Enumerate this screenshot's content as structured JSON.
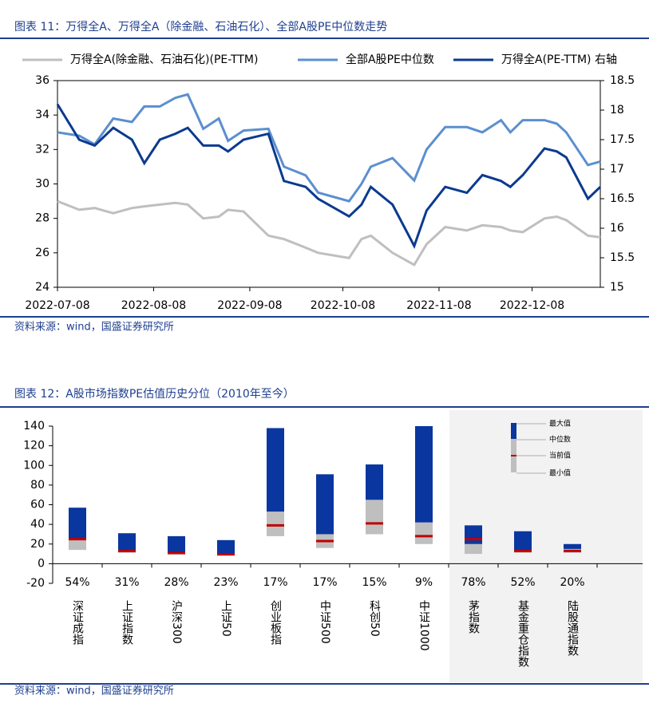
{
  "chart_data": [
    {
      "type": "line",
      "title": "图表 11：万得全A、万得全A（除金融、石油石化）、全部A股PE中位数走势",
      "source": "资料来源：wind，国盛证券研究所",
      "x": [
        "2022-07-08",
        "2022-07-15",
        "2022-07-20",
        "2022-07-26",
        "2022-08-01",
        "2022-08-05",
        "2022-08-10",
        "2022-08-15",
        "2022-08-19",
        "2022-08-24",
        "2022-08-29",
        "2022-09-01",
        "2022-09-06",
        "2022-09-14",
        "2022-09-19",
        "2022-09-26",
        "2022-09-30",
        "2022-10-10",
        "2022-10-14",
        "2022-10-17",
        "2022-10-24",
        "2022-10-31",
        "2022-11-04",
        "2022-11-10",
        "2022-11-17",
        "2022-11-22",
        "2022-11-28",
        "2022-12-01",
        "2022-12-05",
        "2022-12-12",
        "2022-12-16",
        "2022-12-19",
        "2022-12-26",
        "2022-12-30"
      ],
      "xlim": [
        "2022-07-08",
        "2022-12-30"
      ],
      "xticks": [
        "2022-07-08",
        "2022-08-08",
        "2022-09-08",
        "2022-10-08",
        "2022-11-08",
        "2022-12-08"
      ],
      "ylim": [
        24,
        36
      ],
      "yticks": [
        24,
        26,
        28,
        30,
        32,
        34,
        36
      ],
      "y2lim": [
        15,
        18.5
      ],
      "y2ticks": [
        15,
        15.5,
        16,
        16.5,
        17,
        17.5,
        18,
        18.5
      ],
      "series": [
        {
          "name": "万得全A(除金融、石油石化)(PE-TTM)",
          "color": "#bfbfbf",
          "values": [
            29,
            28.5,
            28.6,
            28.3,
            28.6,
            28.7,
            28.8,
            28.9,
            28.8,
            28,
            28.1,
            28.5,
            28.4,
            27,
            26.8,
            26.3,
            26,
            25.7,
            26.8,
            27,
            26,
            25.3,
            26.5,
            27.5,
            27.3,
            27.6,
            27.5,
            27.3,
            27.2,
            28,
            28.1,
            27.9,
            27,
            26.9
          ]
        },
        {
          "name": "全部A股PE中位数",
          "color": "#5b8fd0",
          "values": [
            33,
            32.8,
            32.3,
            33.8,
            33.6,
            34.5,
            34.5,
            35,
            35.2,
            33.2,
            33.8,
            32.5,
            33.1,
            33.2,
            31,
            30.5,
            29.5,
            29,
            30,
            31,
            31.5,
            30.2,
            32,
            33.3,
            33.3,
            33,
            33.7,
            33,
            33.7,
            33.7,
            33.5,
            33,
            31.1,
            31.3
          ]
        },
        {
          "name": "万得全A(PE-TTM) 右轴",
          "color": "#0b3a8f",
          "axis": "y2",
          "values": [
            18.1,
            17.5,
            17.4,
            17.7,
            17.5,
            17.1,
            17.5,
            17.6,
            17.7,
            17.4,
            17.4,
            17.3,
            17.5,
            17.6,
            16.8,
            16.7,
            16.5,
            16.2,
            16.4,
            16.7,
            16.4,
            15.7,
            16.3,
            16.7,
            16.6,
            16.9,
            16.8,
            16.7,
            16.9,
            17.35,
            17.3,
            17.2,
            16.5,
            16.7
          ]
        }
      ]
    },
    {
      "type": "range",
      "title": "图表 12：A股市场指数PE估值历史分位（2010年至今）",
      "source": "资料来源：wind，国盛证券研究所",
      "categories": [
        "深证成指",
        "上证指数",
        "沪深300",
        "上证50",
        "创业板指",
        "中证500",
        "科创50",
        "中证1000",
        "茅指数",
        "基金重仓指数",
        "陆股通指数"
      ],
      "percentile_labels": [
        "54%",
        "31%",
        "28%",
        "23%",
        "17%",
        "17%",
        "15%",
        "9%",
        "78%",
        "52%",
        "20%"
      ],
      "min": [
        14,
        11,
        9,
        8,
        28,
        16,
        30,
        20,
        10,
        11,
        11
      ],
      "median": [
        24,
        14,
        12,
        10,
        53,
        30,
        65,
        42,
        20,
        14,
        15
      ],
      "max": [
        57,
        31,
        28,
        24,
        138,
        91,
        101,
        140,
        39,
        33,
        20
      ],
      "current": [
        25,
        13,
        11,
        9.5,
        39,
        23,
        41,
        28,
        25,
        13,
        13
      ],
      "legend": [
        "最大值",
        "中位数",
        "当前值",
        "最小值"
      ],
      "colors": {
        "upper": "#0a36a0",
        "lower": "#bfbfbf",
        "current": "#c00000"
      },
      "ylim": [
        -20,
        140
      ],
      "yticks": [
        -20,
        0,
        20,
        40,
        60,
        80,
        100,
        120,
        140
      ]
    }
  ]
}
